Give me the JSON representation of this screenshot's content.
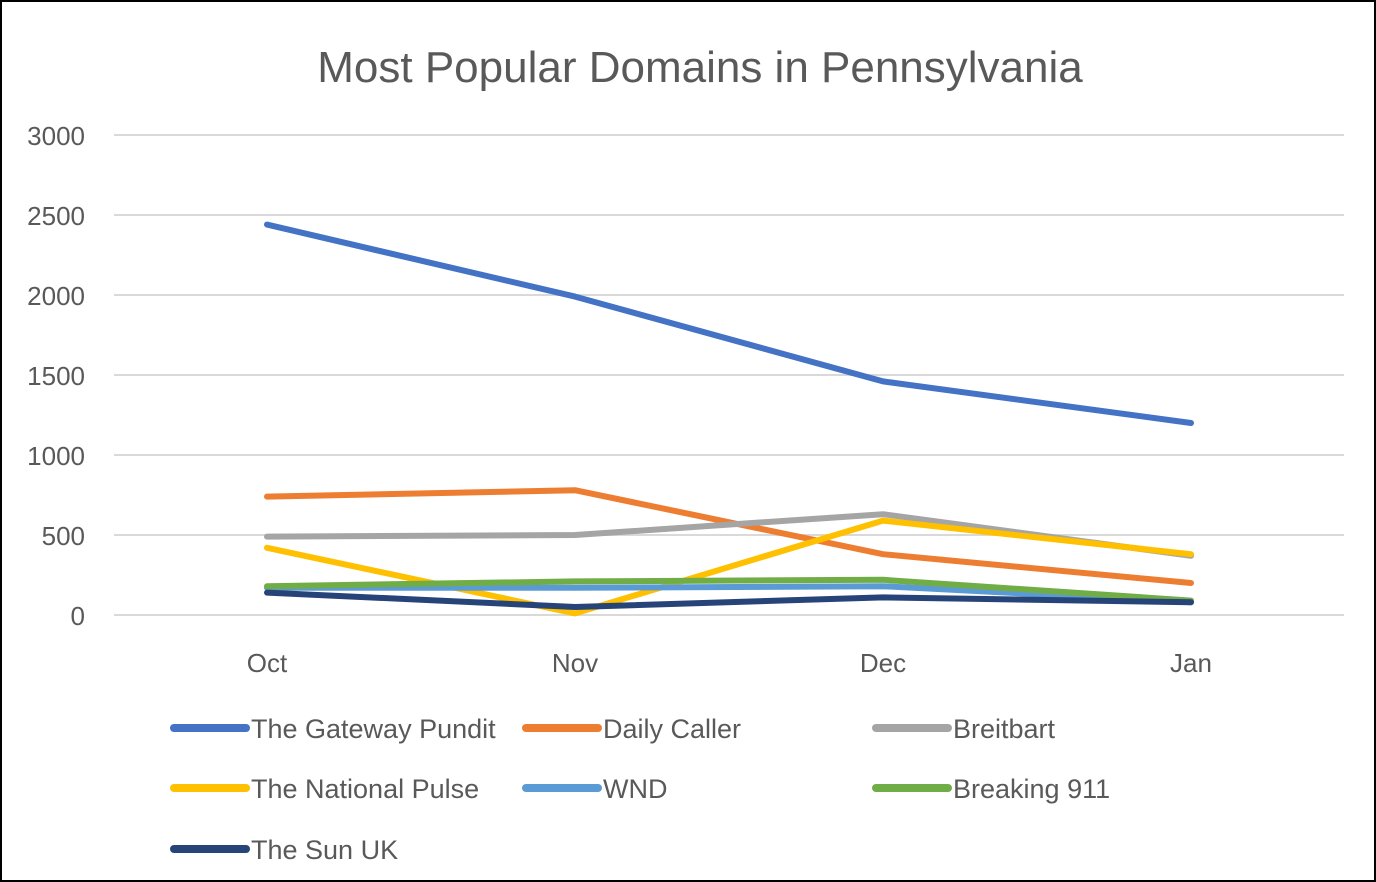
{
  "chart_data": {
    "type": "line",
    "title": "Most Popular Domains in Pennsylvania",
    "xlabel": "",
    "ylabel": "",
    "categories": [
      "Oct",
      "Nov",
      "Dec",
      "Jan"
    ],
    "ylim": [
      0,
      3000
    ],
    "yticks": [
      0,
      500,
      1000,
      1500,
      2000,
      2500,
      3000
    ],
    "grid": true,
    "legend_position": "bottom",
    "series": [
      {
        "name": "The Gateway Pundit",
        "color": "#4472C4",
        "values": [
          2440,
          1990,
          1460,
          1200
        ]
      },
      {
        "name": "Daily Caller",
        "color": "#ED7D31",
        "values": [
          740,
          780,
          380,
          200
        ]
      },
      {
        "name": "Breitbart",
        "color": "#A5A5A5",
        "values": [
          490,
          500,
          630,
          370
        ]
      },
      {
        "name": "The National Pulse",
        "color": "#FFC000",
        "values": [
          420,
          10,
          590,
          380
        ]
      },
      {
        "name": "WND",
        "color": "#5B9BD5",
        "values": [
          170,
          170,
          180,
          80
        ]
      },
      {
        "name": "Breaking 911",
        "color": "#70AD47",
        "values": [
          180,
          210,
          220,
          90
        ]
      },
      {
        "name": "The Sun UK",
        "color": "#264478",
        "values": [
          140,
          50,
          110,
          80
        ]
      }
    ]
  }
}
